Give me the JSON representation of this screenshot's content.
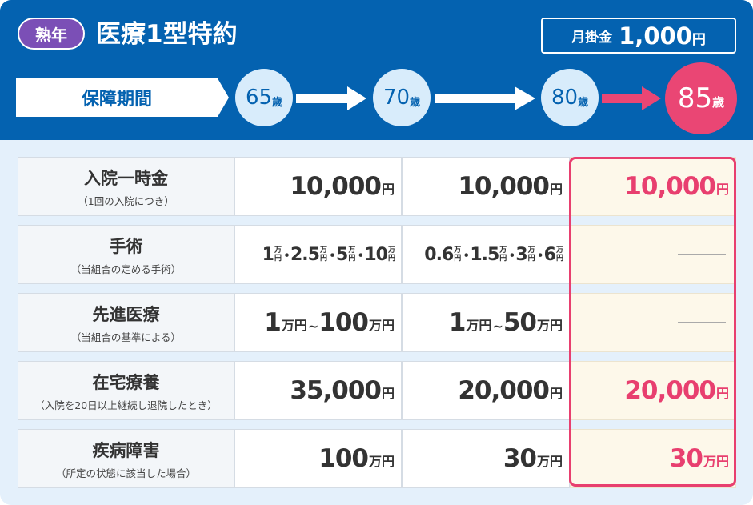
{
  "header": {
    "badge": "熟年",
    "title": "医療1型特約",
    "premium_label": "月掛金",
    "premium_value": "1,000",
    "premium_unit": "円"
  },
  "period": {
    "label": "保障期間",
    "ages": [
      {
        "value": "65",
        "unit": "歳"
      },
      {
        "value": "70",
        "unit": "歳"
      },
      {
        "value": "80",
        "unit": "歳"
      },
      {
        "value": "85",
        "unit": "歳"
      }
    ]
  },
  "rows": [
    {
      "label": "入院一時金",
      "sub": "（1回の入院につき）",
      "c1": "10,000",
      "c1u": "円",
      "c2": "10,000",
      "c2u": "円",
      "c3": "10,000",
      "c3u": "円"
    },
    {
      "label": "手術",
      "sub": "（当組合の定める手術）",
      "c1": [
        "1",
        "2.5",
        "5",
        "10"
      ],
      "c2": [
        "0.6",
        "1.5",
        "3",
        "6"
      ],
      "stack_top": "万",
      "stack_bottom": "円",
      "sep": "･",
      "c3": "—"
    },
    {
      "label": "先進医療",
      "sub": "（当組合の基準による）",
      "c1a": "1",
      "c1b": "100",
      "c2a": "1",
      "c2b": "50",
      "unit": "万円",
      "tilde": "~",
      "c3": "—"
    },
    {
      "label": "在宅療養",
      "sub": "（入院を20日以上継続し退院したとき）",
      "c1": "35,000",
      "c1u": "円",
      "c2": "20,000",
      "c2u": "円",
      "c3": "20,000",
      "c3u": "円"
    },
    {
      "label": "疾病障害",
      "sub": "（所定の状態に該当した場合）",
      "c1": "100",
      "c1u": "万円",
      "c2": "30",
      "c2u": "万円",
      "c3": "30",
      "c3u": "万円"
    }
  ],
  "colors": {
    "header": "#0462b0",
    "highlight": "#e83f6f",
    "badge": "#7b4fb6"
  }
}
